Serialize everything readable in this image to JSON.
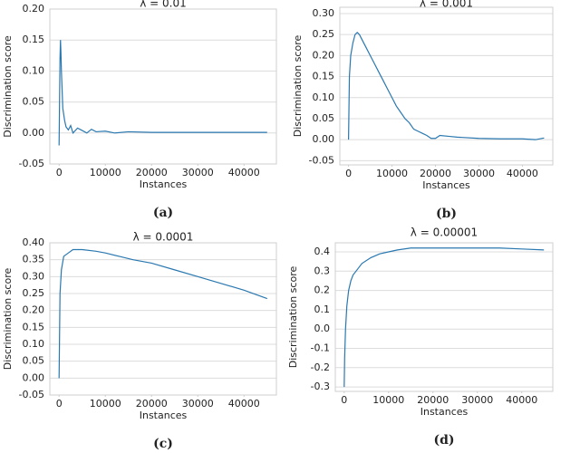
{
  "chart_data": [
    {
      "type": "line",
      "title": "λ = 0.01",
      "xlabel": "Instances",
      "ylabel": "Discrimination score",
      "caption": "(a)",
      "x": [
        0,
        100,
        200,
        300,
        400,
        500,
        600,
        700,
        800,
        1000,
        1200,
        1500,
        2000,
        2500,
        3000,
        4000,
        5000,
        6000,
        7000,
        8000,
        10000,
        12000,
        15000,
        20000,
        25000,
        30000,
        35000,
        40000,
        45000
      ],
      "series": [
        {
          "name": "score",
          "color": "#2a78b0",
          "values": [
            -0.02,
            0.05,
            0.12,
            0.15,
            0.13,
            0.1,
            0.08,
            0.06,
            0.04,
            0.03,
            0.02,
            0.01,
            0.005,
            0.012,
            0.0,
            0.008,
            0.004,
            0.0,
            0.006,
            0.002,
            0.003,
            0.0,
            0.002,
            0.001,
            0.001,
            0.001,
            0.001,
            0.001,
            0.001
          ]
        }
      ],
      "xlim": [
        -2000,
        47000
      ],
      "xticks": [
        0,
        10000,
        20000,
        30000,
        40000
      ],
      "ylim": [
        -0.05,
        0.2
      ],
      "yticks": [
        {
          "value": 0.2,
          "label": "0.20"
        },
        {
          "value": 0.15,
          "label": "0.15"
        },
        {
          "value": 0.1,
          "label": "0.10"
        },
        {
          "value": 0.05,
          "label": "0.05"
        },
        {
          "value": 0,
          "label": "0.00"
        },
        {
          "value": -0.05,
          "label": "-0.05"
        }
      ],
      "grid": "y"
    },
    {
      "type": "line",
      "title": "λ = 0.001",
      "xlabel": "Instances",
      "ylabel": "Discrimination score",
      "caption": "(b)",
      "x": [
        0,
        200,
        500,
        1000,
        1500,
        2000,
        2500,
        3000,
        4000,
        5000,
        6000,
        7000,
        8000,
        9000,
        10000,
        11000,
        12000,
        13000,
        14000,
        15000,
        16000,
        17000,
        18000,
        19000,
        20000,
        21000,
        23000,
        25000,
        30000,
        35000,
        40000,
        43000,
        45000
      ],
      "series": [
        {
          "name": "score",
          "color": "#2a78b0",
          "values": [
            0,
            0.15,
            0.2,
            0.23,
            0.25,
            0.255,
            0.25,
            0.24,
            0.22,
            0.2,
            0.18,
            0.16,
            0.14,
            0.12,
            0.1,
            0.08,
            0.065,
            0.05,
            0.04,
            0.025,
            0.02,
            0.015,
            0.01,
            0.003,
            0.003,
            0.01,
            0.008,
            0.006,
            0.003,
            0.002,
            0.002,
            0.0,
            0.004
          ]
        }
      ],
      "xlim": [
        -2000,
        47000
      ],
      "xticks": [
        0,
        10000,
        20000,
        30000,
        40000
      ],
      "ylim": [
        -0.06,
        0.315
      ],
      "yticks": [
        {
          "value": 0.3,
          "label": "0.30"
        },
        {
          "value": 0.25,
          "label": "0.25"
        },
        {
          "value": 0.2,
          "label": "0.20"
        },
        {
          "value": 0.15,
          "label": "0.15"
        },
        {
          "value": 0.1,
          "label": "0.10"
        },
        {
          "value": 0.05,
          "label": "0.05"
        },
        {
          "value": 0,
          "label": "0.00"
        },
        {
          "value": -0.05,
          "label": "-0.05"
        }
      ],
      "grid": "y"
    },
    {
      "type": "line",
      "title": "λ = 0.0001",
      "xlabel": "Instances",
      "ylabel": "Discrimination score",
      "caption": "(c)",
      "x": [
        0,
        200,
        500,
        1000,
        2000,
        3000,
        5000,
        8000,
        10000,
        13000,
        16000,
        20000,
        25000,
        30000,
        35000,
        40000,
        45000
      ],
      "series": [
        {
          "name": "score",
          "color": "#2a78b0",
          "values": [
            0,
            0.25,
            0.32,
            0.36,
            0.37,
            0.38,
            0.38,
            0.375,
            0.37,
            0.36,
            0.35,
            0.34,
            0.32,
            0.3,
            0.28,
            0.26,
            0.235
          ]
        }
      ],
      "xlim": [
        -2000,
        47000
      ],
      "xticks": [
        0,
        10000,
        20000,
        30000,
        40000
      ],
      "ylim": [
        -0.05,
        0.4
      ],
      "yticks": [
        {
          "value": 0.4,
          "label": "0.40"
        },
        {
          "value": 0.35,
          "label": "0.35"
        },
        {
          "value": 0.3,
          "label": "0.30"
        },
        {
          "value": 0.25,
          "label": "0.25"
        },
        {
          "value": 0.2,
          "label": "0.20"
        },
        {
          "value": 0.15,
          "label": "0.15"
        },
        {
          "value": 0.1,
          "label": "0.10"
        },
        {
          "value": 0.05,
          "label": "0.05"
        },
        {
          "value": 0,
          "label": "0.00"
        },
        {
          "value": -0.05,
          "label": "-0.05"
        }
      ],
      "grid": "y"
    },
    {
      "type": "line",
      "title": "λ = 0.00001",
      "xlabel": "Instances",
      "ylabel": "Discrimination score",
      "caption": "(d)",
      "x": [
        0,
        100,
        300,
        600,
        1000,
        1500,
        2000,
        3000,
        4000,
        6000,
        8000,
        10000,
        12000,
        15000,
        20000,
        25000,
        30000,
        35000,
        40000,
        45000
      ],
      "series": [
        {
          "name": "score",
          "color": "#2a78b0",
          "values": [
            -0.3,
            -0.15,
            0.0,
            0.12,
            0.2,
            0.25,
            0.28,
            0.31,
            0.34,
            0.37,
            0.39,
            0.4,
            0.41,
            0.42,
            0.42,
            0.42,
            0.42,
            0.42,
            0.415,
            0.41
          ]
        }
      ],
      "xlim": [
        -2000,
        47000
      ],
      "xticks": [
        0,
        10000,
        20000,
        30000,
        40000
      ],
      "ylim": [
        -0.323,
        0.447
      ],
      "yticks": [
        0.4,
        0.3,
        0.2,
        0.1,
        {
          "value": 0,
          "label": "0.0"
        },
        -0.1,
        -0.2,
        -0.3
      ],
      "grid": "y"
    }
  ]
}
